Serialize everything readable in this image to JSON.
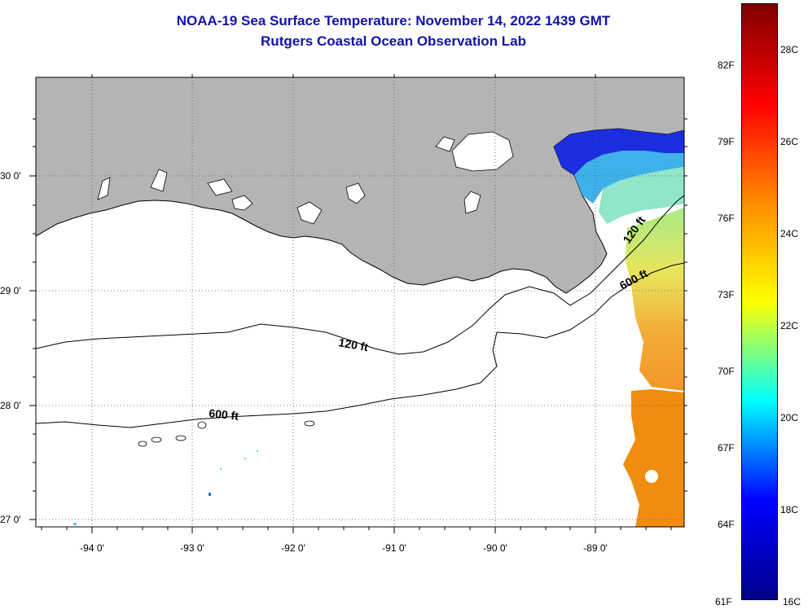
{
  "header": {
    "title": "NOAA-19 Sea Surface Temperature:  November 14, 2022 1439 GMT",
    "subtitle": "Rutgers Coastal Ocean Observation Lab"
  },
  "map": {
    "latitude_labels": [
      "30 0'",
      "29 0'",
      "28 0'",
      "27 0'"
    ],
    "longitude_labels": [
      "-94 0'",
      "-93 0'",
      "-92 0'",
      "-91 0'",
      "-90 0'",
      "-89 0'"
    ],
    "contour_labels": [
      "120 ft",
      "600 ft",
      "120 ft",
      "600 ft"
    ],
    "land_color": "#b4b4b4",
    "ocean_color": "#ffffff"
  },
  "colorbar": {
    "fahrenheit_labels": [
      "82F",
      "79F",
      "76F",
      "73F",
      "70F",
      "67F",
      "64F",
      "61F"
    ],
    "celsius_labels": [
      "28C",
      "26C",
      "24C",
      "22C",
      "20C",
      "18C",
      "16C"
    ],
    "colors": [
      "#800000",
      "#ff0000",
      "#ff8c00",
      "#ffff00",
      "#00ffff",
      "#0000ff",
      "#00008c"
    ]
  }
}
